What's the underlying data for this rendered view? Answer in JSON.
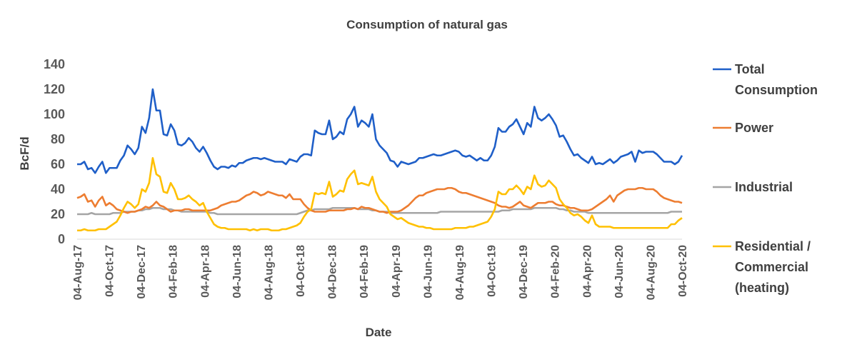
{
  "chart_data": {
    "type": "line",
    "title": "Consumption of natural gas",
    "xlabel": "Date",
    "ylabel": "BcF/d",
    "ylim": [
      0,
      140
    ],
    "yticks": [
      0,
      20,
      40,
      60,
      80,
      100,
      120,
      140
    ],
    "grid": false,
    "legend_position": "right",
    "xtick_labels": [
      "04-Aug-17",
      "04-Oct-17",
      "04-Dec-17",
      "04-Feb-18",
      "04-Apr-18",
      "04-Jun-18",
      "04-Aug-18",
      "04-Oct-18",
      "04-Dec-18",
      "04-Feb-19",
      "04-Apr-19",
      "04-Jun-19",
      "04-Aug-19",
      "04-Oct-19",
      "04-Dec-19",
      "04-Feb-20",
      "04-Apr-20",
      "04-Jun-20",
      "04-Aug-20",
      "04-Oct-20"
    ],
    "series": [
      {
        "name": "Total Consumption",
        "legend_lines": [
          "Total",
          "Consumption"
        ],
        "color": "#1f5fc8",
        "values": [
          60,
          60,
          62,
          56,
          57,
          53,
          58,
          62,
          53,
          57,
          57,
          57,
          63,
          67,
          75,
          72,
          68,
          73,
          90,
          85,
          97,
          120,
          103,
          103,
          84,
          83,
          92,
          87,
          76,
          75,
          77,
          81,
          78,
          73,
          70,
          74,
          69,
          63,
          58,
          56,
          58,
          58,
          57,
          59,
          58,
          61,
          61,
          63,
          64,
          65,
          65,
          64,
          65,
          64,
          63,
          62,
          62,
          62,
          60,
          64,
          63,
          62,
          66,
          68,
          68,
          67,
          87,
          85,
          84,
          84,
          95,
          80,
          82,
          86,
          84,
          96,
          100,
          106,
          90,
          95,
          93,
          90,
          100,
          80,
          75,
          72,
          69,
          63,
          62,
          58,
          62,
          61,
          60,
          61,
          62,
          65,
          65,
          66,
          67,
          68,
          67,
          67,
          68,
          69,
          70,
          71,
          70,
          67,
          66,
          67,
          65,
          63,
          65,
          63,
          63,
          67,
          74,
          89,
          86,
          86,
          90,
          92,
          96,
          90,
          84,
          93,
          90,
          106,
          97,
          95,
          97,
          100,
          96,
          91,
          82,
          83,
          78,
          72,
          67,
          68,
          65,
          63,
          61,
          66,
          60,
          61,
          60,
          62,
          64,
          61,
          63,
          66,
          67,
          68,
          70,
          62,
          71,
          69,
          70,
          70,
          70,
          68,
          65,
          62,
          62,
          62,
          60,
          62,
          67
        ]
      },
      {
        "name": "Power",
        "legend_lines": [
          "Power"
        ],
        "color": "#ed7d31",
        "values": [
          33,
          34,
          36,
          30,
          31,
          26,
          31,
          34,
          27,
          29,
          27,
          24,
          23,
          22,
          21,
          22,
          22,
          23,
          24,
          26,
          25,
          27,
          30,
          27,
          26,
          24,
          22,
          23,
          23,
          23,
          24,
          24,
          23,
          23,
          23,
          23,
          23,
          23,
          24,
          25,
          27,
          28,
          29,
          30,
          30,
          31,
          33,
          35,
          36,
          38,
          37,
          35,
          36,
          38,
          37,
          36,
          35,
          35,
          33,
          36,
          32,
          32,
          32,
          28,
          25,
          23,
          22,
          22,
          22,
          22,
          23,
          23,
          23,
          23,
          23,
          24,
          24,
          25,
          24,
          26,
          25,
          25,
          24,
          23,
          22,
          22,
          21,
          22,
          22,
          22,
          23,
          25,
          27,
          30,
          33,
          35,
          35,
          37,
          38,
          39,
          40,
          40,
          40,
          41,
          41,
          40,
          38,
          37,
          37,
          36,
          35,
          34,
          33,
          32,
          31,
          30,
          29,
          27,
          26,
          26,
          25,
          26,
          28,
          30,
          27,
          26,
          25,
          27,
          29,
          29,
          29,
          30,
          30,
          28,
          27,
          27,
          26,
          25,
          25,
          24,
          23,
          23,
          23,
          24,
          26,
          28,
          30,
          32,
          35,
          30,
          35,
          37,
          39,
          40,
          40,
          40,
          41,
          41,
          40,
          40,
          40,
          38,
          35,
          33,
          32,
          31,
          30,
          30,
          29
        ]
      },
      {
        "name": "Industrial",
        "legend_lines": [
          "Industrial"
        ],
        "color": "#a5a5a5",
        "values": [
          20,
          20,
          20,
          20,
          21,
          20,
          20,
          20,
          20,
          20,
          21,
          21,
          21,
          22,
          22,
          22,
          22,
          23,
          23,
          24,
          24,
          25,
          25,
          25,
          24,
          24,
          24,
          23,
          23,
          22,
          22,
          22,
          22,
          22,
          22,
          22,
          22,
          21,
          21,
          20,
          20,
          20,
          20,
          20,
          20,
          20,
          20,
          20,
          20,
          20,
          20,
          20,
          20,
          20,
          20,
          20,
          20,
          20,
          20,
          20,
          20,
          20,
          21,
          22,
          23,
          23,
          24,
          24,
          24,
          24,
          24,
          25,
          25,
          25,
          25,
          25,
          25,
          25,
          24,
          24,
          24,
          24,
          23,
          23,
          22,
          22,
          22,
          21,
          21,
          21,
          21,
          21,
          21,
          21,
          21,
          21,
          21,
          21,
          21,
          21,
          21,
          22,
          22,
          22,
          22,
          22,
          22,
          22,
          22,
          22,
          22,
          22,
          22,
          22,
          22,
          22,
          22,
          22,
          23,
          23,
          23,
          24,
          24,
          24,
          24,
          24,
          24,
          25,
          25,
          25,
          25,
          25,
          25,
          25,
          24,
          24,
          23,
          23,
          22,
          22,
          22,
          22,
          21,
          21,
          21,
          21,
          21,
          21,
          21,
          21,
          21,
          21,
          21,
          21,
          21,
          21,
          21,
          21,
          21,
          21,
          21,
          21,
          21,
          21,
          21,
          22,
          22,
          22,
          22
        ]
      },
      {
        "name": "Residential / Commercial (heating)",
        "legend_lines": [
          "Residential /",
          "Commercial",
          "(heating)"
        ],
        "color": "#ffc000",
        "values": [
          7,
          7,
          8,
          7,
          7,
          7,
          8,
          8,
          8,
          10,
          12,
          14,
          19,
          25,
          30,
          28,
          25,
          28,
          40,
          38,
          45,
          65,
          52,
          50,
          38,
          37,
          45,
          40,
          32,
          32,
          33,
          35,
          32,
          30,
          27,
          29,
          22,
          17,
          12,
          10,
          9,
          9,
          8,
          8,
          8,
          8,
          8,
          8,
          7,
          8,
          7,
          8,
          8,
          8,
          7,
          7,
          7,
          8,
          8,
          9,
          10,
          11,
          13,
          18,
          22,
          24,
          37,
          36,
          37,
          36,
          46,
          34,
          36,
          39,
          38,
          48,
          52,
          55,
          44,
          45,
          44,
          43,
          50,
          38,
          32,
          29,
          26,
          20,
          18,
          16,
          17,
          15,
          13,
          12,
          11,
          10,
          10,
          9,
          9,
          8,
          8,
          8,
          8,
          8,
          8,
          9,
          9,
          9,
          9,
          10,
          10,
          11,
          12,
          13,
          14,
          18,
          24,
          38,
          36,
          36,
          40,
          40,
          43,
          40,
          36,
          42,
          40,
          51,
          44,
          42,
          43,
          47,
          44,
          41,
          32,
          28,
          25,
          21,
          19,
          20,
          18,
          15,
          13,
          19,
          12,
          10,
          10,
          10,
          10,
          9,
          9,
          9,
          9,
          9,
          9,
          9,
          9,
          9,
          9,
          9,
          9,
          9,
          9,
          9,
          9,
          12,
          12,
          15,
          17
        ]
      }
    ]
  }
}
